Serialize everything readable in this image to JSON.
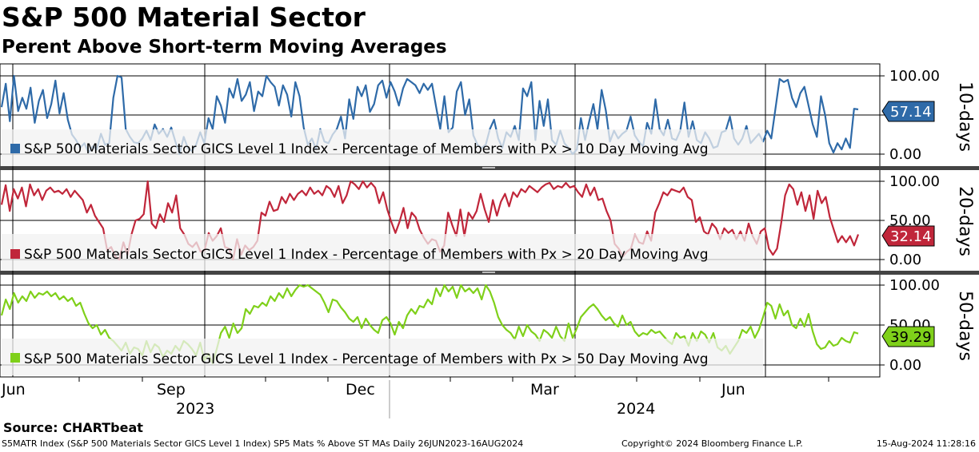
{
  "header": {
    "title": "S&P 500 Material Sector",
    "subtitle": "Perent Above Short-term Moving Averages"
  },
  "footer": {
    "source": "Source: CHARTbeat",
    "description": "S5MATR Index (S&P 500 Materials Sector GICS Level 1 Index) SP5 Mats % Above ST MAs  Daily 26JUN2023-16AUG2024",
    "copyright": "Copyright© 2024 Bloomberg Finance L.P.",
    "timestamp": "15-Aug-2024 11:28:16"
  },
  "chart_data": [
    {
      "type": "line",
      "axis_title": "10-days",
      "series": [
        {
          "name": "S&P 500 Materials Sector GICS Level 1 Index - Percentage of Members with Px > 10 Day Moving Avg",
          "color": "#2e6aa8",
          "last_value": "57.14",
          "values": [
            60,
            90,
            42,
            100,
            55,
            72,
            58,
            85,
            40,
            68,
            82,
            46,
            64,
            94,
            52,
            78,
            44,
            25,
            18,
            8,
            14,
            2,
            10,
            6,
            26,
            12,
            14,
            72,
            100,
            98,
            32,
            22,
            15,
            14,
            20,
            30,
            18,
            38,
            26,
            32,
            22,
            34,
            16,
            0,
            22,
            8,
            4,
            12,
            28,
            14,
            46,
            32,
            74,
            62,
            40,
            84,
            72,
            96,
            68,
            76,
            92,
            55,
            80,
            74,
            100,
            92,
            86,
            62,
            88,
            76,
            48,
            92,
            74,
            34,
            12,
            20,
            6,
            32,
            16,
            14,
            25,
            32,
            48,
            20,
            70,
            45,
            86,
            74,
            88,
            54,
            64,
            88,
            94,
            72,
            92,
            80,
            62,
            84,
            96,
            92,
            88,
            78,
            90,
            82,
            90,
            60,
            32,
            74,
            28,
            34,
            80,
            92,
            50,
            70,
            24,
            12,
            8,
            12,
            32,
            44,
            20,
            8,
            28,
            22,
            36,
            18,
            84,
            74,
            92,
            18,
            68,
            36,
            70,
            18,
            12,
            30,
            14,
            8,
            0,
            6,
            46,
            18,
            42,
            64,
            32,
            82,
            56,
            16,
            30,
            20,
            26,
            30,
            48,
            24,
            16,
            10,
            40,
            26,
            70,
            32,
            24,
            44,
            20,
            18,
            30,
            66,
            22,
            42,
            18,
            14,
            28,
            20,
            8,
            10,
            28,
            30,
            48,
            20,
            12,
            20,
            36,
            14,
            20,
            26,
            16,
            30,
            20,
            58,
            96,
            92,
            95,
            72,
            60,
            78,
            86,
            62,
            38,
            22,
            74,
            50,
            14,
            2,
            14,
            6,
            20,
            8,
            58,
            57.14
          ]
        }
      ]
    },
    {
      "type": "line",
      "axis_title": "20-days",
      "series": [
        {
          "name": "S&P 500 Materials Sector GICS Level 1 Index - Percentage of Members with Px > 20 Day Moving Avg",
          "color": "#c0263a",
          "last_value": "32.14",
          "values": [
            70,
            95,
            62,
            90,
            78,
            92,
            68,
            96,
            82,
            90,
            76,
            88,
            92,
            86,
            88,
            84,
            90,
            80,
            88,
            82,
            76,
            60,
            70,
            56,
            48,
            40,
            12,
            16,
            4,
            0,
            22,
            6,
            32,
            50,
            52,
            58,
            100,
            46,
            40,
            58,
            48,
            72,
            60,
            82,
            40,
            32,
            20,
            16,
            22,
            10,
            12,
            34,
            24,
            30,
            40,
            16,
            14,
            0,
            26,
            6,
            18,
            12,
            16,
            24,
            60,
            56,
            74,
            62,
            64,
            80,
            72,
            84,
            76,
            84,
            88,
            82,
            92,
            84,
            88,
            82,
            94,
            90,
            80,
            94,
            72,
            82,
            100,
            96,
            90,
            100,
            92,
            98,
            92,
            72,
            86,
            64,
            48,
            34,
            48,
            66,
            40,
            60,
            54,
            38,
            28,
            20,
            26,
            24,
            10,
            18,
            60,
            44,
            30,
            64,
            30,
            60,
            52,
            62,
            84,
            64,
            48,
            76,
            56,
            74,
            84,
            68,
            86,
            80,
            90,
            86,
            94,
            90,
            86,
            92,
            96,
            98,
            90,
            94,
            92,
            98,
            92,
            94,
            86,
            80,
            96,
            82,
            92,
            76,
            78,
            62,
            50,
            20,
            14,
            4,
            10,
            14,
            32,
            22,
            20,
            36,
            24,
            60,
            72,
            86,
            82,
            90,
            88,
            86,
            92,
            80,
            76,
            48,
            54,
            36,
            32,
            46,
            40,
            26,
            40,
            34,
            38,
            26,
            36,
            24,
            46,
            30,
            20,
            36,
            40,
            14,
            6,
            14,
            46,
            82,
            96,
            90,
            70,
            86,
            62,
            82,
            52,
            88,
            72,
            80,
            54,
            38,
            22,
            30,
            22,
            30,
            18,
            32.14
          ]
        }
      ]
    },
    {
      "type": "line",
      "axis_title": "50-days",
      "series": [
        {
          "name": "S&P 500 Materials Sector GICS Level 1 Index - Percentage of Members with Px > 50 Day Moving Avg",
          "color": "#7fd01a",
          "last_value": "39.29",
          "values": [
            62,
            82,
            70,
            90,
            78,
            86,
            80,
            92,
            84,
            90,
            88,
            92,
            86,
            90,
            82,
            86,
            80,
            84,
            74,
            78,
            64,
            52,
            46,
            50,
            38,
            44,
            34,
            30,
            24,
            18,
            28,
            14,
            22,
            20,
            12,
            30,
            16,
            26,
            22,
            10,
            18,
            14,
            24,
            18,
            30,
            26,
            20,
            12,
            28,
            6,
            14,
            2,
            20,
            40,
            48,
            34,
            52,
            40,
            46,
            70,
            64,
            74,
            72,
            78,
            74,
            86,
            80,
            90,
            84,
            96,
            86,
            94,
            100,
            98,
            100,
            96,
            92,
            88,
            78,
            66,
            82,
            80,
            72,
            66,
            58,
            54,
            60,
            46,
            58,
            50,
            44,
            40,
            56,
            60,
            52,
            38,
            54,
            46,
            62,
            70,
            64,
            74,
            72,
            82,
            76,
            96,
            86,
            100,
            92,
            98,
            84,
            100,
            92,
            96,
            90,
            96,
            82,
            100,
            92,
            78,
            60,
            50,
            44,
            40,
            32,
            48,
            36,
            50,
            42,
            38,
            30,
            44,
            40,
            34,
            48,
            36,
            30,
            52,
            34,
            46,
            60,
            66,
            72,
            76,
            70,
            62,
            56,
            60,
            52,
            48,
            62,
            50,
            54,
            42,
            36,
            40,
            38,
            44,
            40,
            42,
            36,
            30,
            26,
            40,
            34,
            36,
            24,
            40,
            30,
            42,
            38,
            28,
            40,
            22,
            18,
            24,
            14,
            22,
            30,
            44,
            40,
            48,
            34,
            44,
            60,
            78,
            74,
            58,
            76,
            62,
            68,
            50,
            46,
            58,
            48,
            64,
            42,
            26,
            20,
            22,
            30,
            24,
            26,
            34,
            30,
            28,
            41,
            39.29
          ]
        }
      ]
    }
  ],
  "axes": {
    "y_ticks_top": [
      "100.00",
      "0.00"
    ],
    "y_ticks_mid": [
      "100.00",
      "50.00",
      "0.00"
    ],
    "y_ticks_bottom": [
      "100.00",
      "50.00",
      "0.00"
    ],
    "x_month_labels": [
      "Jun",
      "Sep",
      "Dec",
      "Mar",
      "Jun"
    ],
    "x_year_labels": [
      "2023",
      "2024"
    ]
  }
}
